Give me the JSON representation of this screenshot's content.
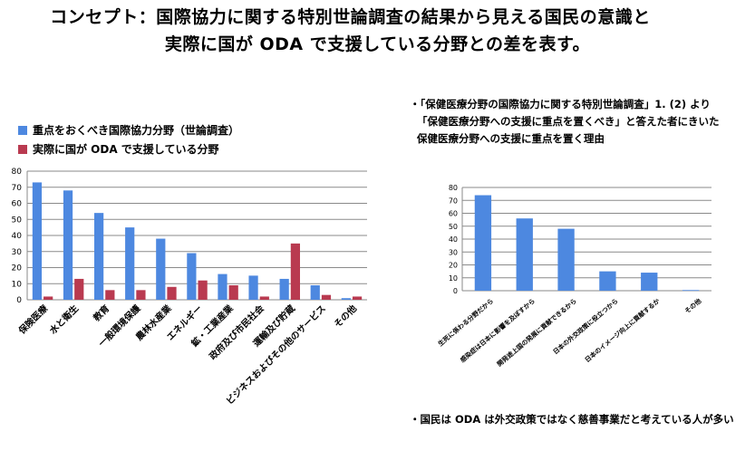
{
  "title_line1": "コンセプト：国際協力に関する特別世論調査の結果から見える国民の意識と",
  "title_line2": "実際に国が ODA で支援している分野との差を表す。",
  "legend": {
    "series_a": "重点をおくべき国際協力分野（世論調査）",
    "series_b": "実際に国が ODA で支援している分野"
  },
  "note_top": {
    "line1": "・「保健医療分野の国際協力に関する特別世論調査」1. (2) より",
    "line2": "「保健医療分野への支援に重点を置くべき」と答えた者にきいた",
    "line3": "保健医療分野への支援に重点を置く理由"
  },
  "note_bottom": "・国民は ODA は外交政策ではなく慈善事業だと考えている人が多い",
  "colors": {
    "series_a": "#4d88e0",
    "series_b": "#b93a50",
    "grid": "#8a8a8a"
  },
  "chart_data": [
    {
      "type": "bar",
      "categories": [
        "保険医療",
        "水と衛生",
        "教育",
        "一般環境保護",
        "農林水産業",
        "エネルギー",
        "鉱・工業産業",
        "政府及び市民社会",
        "運輸及び貯蔵",
        "ビジネスおよびその他のサービス",
        "その他"
      ],
      "series": [
        {
          "name": "重点をおくべき国際協力分野（世論調査）",
          "values": [
            73,
            68,
            54,
            45,
            38,
            29,
            16,
            15,
            13,
            9,
            1
          ]
        },
        {
          "name": "実際に国が ODA で支援している分野",
          "values": [
            2,
            13,
            6,
            6,
            8,
            12,
            9,
            2,
            35,
            3,
            2
          ]
        }
      ],
      "yticks": [
        0,
        10,
        20,
        30,
        40,
        50,
        60,
        70,
        80
      ],
      "ylim": [
        0,
        80
      ],
      "grid": true,
      "legend": "top-left"
    },
    {
      "type": "bar",
      "categories": [
        "生死に係わる分野だから",
        "感染症は日本に影響を及ぼすから",
        "開発途上国の発展に貢献できるから",
        "日本の外交政策に役立つから",
        "日本のイメージ向上に貢献するか",
        "その他"
      ],
      "values": [
        74,
        56,
        48,
        15,
        14,
        0.5
      ],
      "yticks": [
        0,
        10,
        20,
        30,
        40,
        50,
        60,
        70,
        80
      ],
      "ylim": [
        0,
        80
      ],
      "grid": true
    }
  ]
}
